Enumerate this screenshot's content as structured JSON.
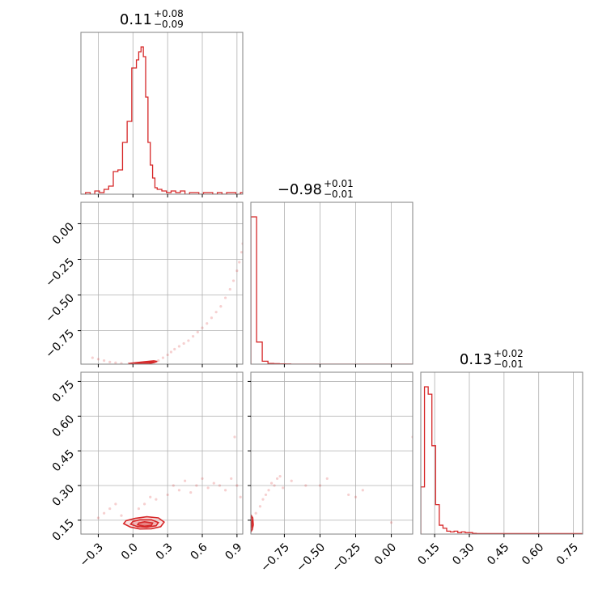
{
  "chart_data": {
    "type": "corner",
    "colors": {
      "line": "#d62728",
      "grid": "#b0b0b0",
      "spine": "#808080"
    },
    "grid": true,
    "params": [
      {
        "title_value": "0.11",
        "title_plus": "+0.08",
        "title_minus": "−0.09",
        "range": [
          -0.45,
          0.95
        ]
      },
      {
        "title_value": "−0.98",
        "title_plus": "+0.01",
        "title_minus": "−0.01",
        "range": [
          -0.985,
          0.15
        ]
      },
      {
        "title_value": "0.13",
        "title_plus": "+0.02",
        "title_minus": "−0.01",
        "range": [
          0.09,
          0.79
        ]
      }
    ],
    "histograms": [
      {
        "param": 0,
        "edges": [
          -0.45,
          -0.41,
          -0.37,
          -0.33,
          -0.29,
          -0.25,
          -0.21,
          -0.17,
          -0.13,
          -0.09,
          -0.05,
          -0.01,
          0.03,
          0.05,
          0.07,
          0.09,
          0.11,
          0.13,
          0.15,
          0.17,
          0.19,
          0.21,
          0.25,
          0.29,
          0.33,
          0.37,
          0.41,
          0.45,
          0.49,
          0.53,
          0.57,
          0.61,
          0.65,
          0.69,
          0.73,
          0.77,
          0.81,
          0.85,
          0.89,
          0.93,
          0.95
        ],
        "counts": [
          0,
          1,
          0,
          2,
          1,
          3,
          5,
          14,
          15,
          32,
          45,
          78,
          83,
          88,
          91,
          85,
          60,
          32,
          18,
          10,
          4,
          3,
          2,
          1,
          2,
          1,
          2,
          0,
          1,
          1,
          0,
          1,
          1,
          0,
          1,
          0,
          1,
          1,
          0,
          1
        ]
      },
      {
        "param": 1,
        "edges": [
          -0.985,
          -0.945,
          -0.905,
          -0.865,
          -0.825,
          -0.785,
          -0.745,
          -0.705,
          -0.665,
          -0.625,
          0.15
        ],
        "counts": [
          100,
          15,
          2,
          0.5,
          0.3,
          0.2,
          0.1,
          0,
          0,
          0
        ]
      },
      {
        "param": 2,
        "edges": [
          0.09,
          0.106,
          0.122,
          0.138,
          0.154,
          0.17,
          0.186,
          0.202,
          0.218,
          0.234,
          0.25,
          0.266,
          0.282,
          0.298,
          0.314,
          0.33,
          0.79
        ],
        "counts": [
          32,
          100,
          95,
          60,
          20,
          6,
          4,
          2,
          1.5,
          2,
          1,
          1.5,
          1,
          1,
          0.5,
          0.3
        ]
      }
    ],
    "panels": [
      {
        "row": 1,
        "col": 0,
        "x_param": 0,
        "y_param": 1,
        "contours": [
          [
            [
              -0.02,
              -0.985
            ],
            [
              0.05,
              -0.986
            ],
            [
              0.12,
              -0.983
            ],
            [
              0.18,
              -0.974
            ],
            [
              0.21,
              -0.966
            ],
            [
              0.18,
              -0.962
            ],
            [
              0.1,
              -0.968
            ],
            [
              0.02,
              -0.975
            ],
            [
              -0.03,
              -0.98
            ]
          ],
          [
            [
              0.02,
              -0.983
            ],
            [
              0.08,
              -0.984
            ],
            [
              0.14,
              -0.979
            ],
            [
              0.18,
              -0.971
            ],
            [
              0.14,
              -0.969
            ],
            [
              0.08,
              -0.974
            ],
            [
              0.03,
              -0.978
            ]
          ]
        ],
        "points": [
          [
            -0.35,
            -0.94
          ],
          [
            -0.3,
            -0.95
          ],
          [
            -0.25,
            -0.96
          ],
          [
            -0.2,
            -0.97
          ],
          [
            -0.15,
            -0.975
          ],
          [
            -0.1,
            -0.98
          ],
          [
            0.22,
            -0.96
          ],
          [
            0.26,
            -0.94
          ],
          [
            0.3,
            -0.92
          ],
          [
            0.33,
            -0.9
          ],
          [
            0.36,
            -0.88
          ],
          [
            0.4,
            -0.86
          ],
          [
            0.44,
            -0.84
          ],
          [
            0.48,
            -0.82
          ],
          [
            0.52,
            -0.79
          ],
          [
            0.56,
            -0.76
          ],
          [
            0.6,
            -0.73
          ],
          [
            0.64,
            -0.7
          ],
          [
            0.68,
            -0.66
          ],
          [
            0.72,
            -0.62
          ],
          [
            0.76,
            -0.58
          ],
          [
            0.8,
            -0.52
          ],
          [
            0.84,
            -0.46
          ],
          [
            0.87,
            -0.4
          ],
          [
            0.9,
            -0.33
          ],
          [
            0.92,
            -0.27
          ],
          [
            0.94,
            -0.2
          ],
          [
            0.95,
            -0.14
          ]
        ]
      },
      {
        "row": 2,
        "col": 0,
        "x_param": 0,
        "y_param": 2,
        "contours": [
          [
            [
              -0.08,
              0.135
            ],
            [
              -0.02,
              0.12
            ],
            [
              0.06,
              0.112
            ],
            [
              0.16,
              0.113
            ],
            [
              0.24,
              0.122
            ],
            [
              0.27,
              0.142
            ],
            [
              0.22,
              0.16
            ],
            [
              0.12,
              0.165
            ],
            [
              0.02,
              0.158
            ],
            [
              -0.06,
              0.148
            ]
          ],
          [
            [
              -0.02,
              0.133
            ],
            [
              0.04,
              0.122
            ],
            [
              0.12,
              0.12
            ],
            [
              0.2,
              0.126
            ],
            [
              0.22,
              0.14
            ],
            [
              0.16,
              0.152
            ],
            [
              0.06,
              0.152
            ],
            [
              0.0,
              0.145
            ]
          ],
          [
            [
              0.04,
              0.13
            ],
            [
              0.1,
              0.124
            ],
            [
              0.16,
              0.128
            ],
            [
              0.17,
              0.138
            ],
            [
              0.1,
              0.143
            ],
            [
              0.05,
              0.138
            ]
          ]
        ],
        "points": [
          [
            -0.3,
            0.16
          ],
          [
            -0.25,
            0.18
          ],
          [
            -0.2,
            0.2
          ],
          [
            -0.15,
            0.22
          ],
          [
            -0.1,
            0.17
          ],
          [
            0.05,
            0.2
          ],
          [
            0.1,
            0.22
          ],
          [
            0.15,
            0.25
          ],
          [
            0.2,
            0.24
          ],
          [
            0.3,
            0.26
          ],
          [
            0.35,
            0.3
          ],
          [
            0.4,
            0.28
          ],
          [
            0.45,
            0.32
          ],
          [
            0.5,
            0.27
          ],
          [
            0.55,
            0.3
          ],
          [
            0.6,
            0.33
          ],
          [
            0.65,
            0.29
          ],
          [
            0.7,
            0.31
          ],
          [
            0.75,
            0.3
          ],
          [
            0.8,
            0.28
          ],
          [
            0.85,
            0.33
          ],
          [
            0.9,
            0.3
          ],
          [
            0.93,
            0.25
          ],
          [
            0.88,
            0.51
          ]
        ]
      },
      {
        "row": 2,
        "col": 1,
        "x_param": 1,
        "y_param": 2,
        "contours": [
          [
            [
              -0.985,
              0.1
            ],
            [
              -0.975,
              0.11
            ],
            [
              -0.968,
              0.13
            ],
            [
              -0.972,
              0.16
            ],
            [
              -0.982,
              0.17
            ]
          ],
          [
            [
              -0.985,
              0.115
            ],
            [
              -0.978,
              0.125
            ],
            [
              -0.976,
              0.145
            ],
            [
              -0.983,
              0.155
            ]
          ]
        ],
        "points": [
          [
            -0.95,
            0.18
          ],
          [
            -0.92,
            0.21
          ],
          [
            -0.9,
            0.24
          ],
          [
            -0.88,
            0.26
          ],
          [
            -0.86,
            0.28
          ],
          [
            -0.84,
            0.31
          ],
          [
            -0.82,
            0.3
          ],
          [
            -0.8,
            0.33
          ],
          [
            -0.78,
            0.34
          ],
          [
            -0.76,
            0.29
          ],
          [
            -0.7,
            0.32
          ],
          [
            -0.6,
            0.3
          ],
          [
            -0.5,
            0.3
          ],
          [
            -0.45,
            0.33
          ],
          [
            -0.3,
            0.26
          ],
          [
            -0.25,
            0.25
          ],
          [
            -0.2,
            0.28
          ],
          [
            0.0,
            0.14
          ],
          [
            0.15,
            0.51
          ]
        ]
      }
    ],
    "ticks": {
      "col_0_x": [
        {
          "value": -0.3,
          "label": "−0.3"
        },
        {
          "value": 0.0,
          "label": "0.0"
        },
        {
          "value": 0.3,
          "label": "0.3"
        },
        {
          "value": 0.6,
          "label": "0.6"
        },
        {
          "value": 0.9,
          "label": "0.9"
        }
      ],
      "col_1_x": [
        {
          "value": -0.75,
          "label": "−0.75"
        },
        {
          "value": -0.5,
          "label": "−0.50"
        },
        {
          "value": -0.25,
          "label": "−0.25"
        },
        {
          "value": 0.0,
          "label": "0.00"
        }
      ],
      "col_2_x": [
        {
          "value": 0.15,
          "label": "0.15"
        },
        {
          "value": 0.3,
          "label": "0.30"
        },
        {
          "value": 0.45,
          "label": "0.45"
        },
        {
          "value": 0.6,
          "label": "0.60"
        },
        {
          "value": 0.75,
          "label": "0.75"
        }
      ],
      "row_1_y": [
        {
          "value": 0.0,
          "label": "0.00"
        },
        {
          "value": -0.25,
          "label": "−0.25"
        },
        {
          "value": -0.5,
          "label": "−0.50"
        },
        {
          "value": -0.75,
          "label": "−0.75"
        }
      ],
      "row_2_y": [
        {
          "value": 0.75,
          "label": "0.75"
        },
        {
          "value": 0.6,
          "label": "0.60"
        },
        {
          "value": 0.45,
          "label": "0.45"
        },
        {
          "value": 0.3,
          "label": "0.30"
        },
        {
          "value": 0.15,
          "label": "0.15"
        }
      ]
    }
  }
}
